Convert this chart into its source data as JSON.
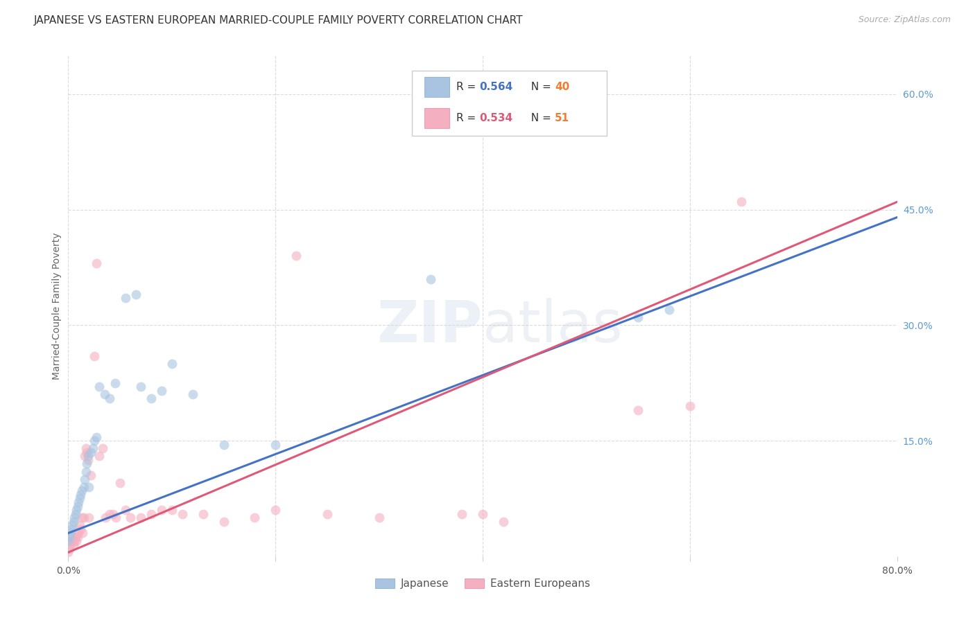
{
  "title": "JAPANESE VS EASTERN EUROPEAN MARRIED-COUPLE FAMILY POVERTY CORRELATION CHART",
  "source": "Source: ZipAtlas.com",
  "ylabel": "Married-Couple Family Poverty",
  "xlim": [
    0.0,
    0.8
  ],
  "ylim": [
    0.0,
    0.65
  ],
  "x_tick_positions": [
    0.0,
    0.2,
    0.4,
    0.6,
    0.8
  ],
  "x_tick_labels": [
    "0.0%",
    "",
    "",
    "",
    "80.0%"
  ],
  "y_tick_positions": [
    0.0,
    0.15,
    0.3,
    0.45,
    0.6
  ],
  "y_tick_labels_right": [
    "",
    "15.0%",
    "30.0%",
    "45.0%",
    "60.0%"
  ],
  "watermark_text": "ZIPatlas",
  "japanese_color": "#a8c4e0",
  "eastern_color": "#f4b0c0",
  "japanese_line_color": "#4472c4",
  "eastern_line_color": "#e05878",
  "background_color": "#ffffff",
  "grid_color": "#d8d8d8",
  "right_tick_color": "#5b9bd5",
  "marker_size": 100,
  "marker_alpha": 0.6,
  "line_width": 2.2,
  "japanese_R": "0.564",
  "japanese_N": "40",
  "eastern_R": "0.534",
  "eastern_N": "51",
  "R_color": "#333333",
  "R_value_color_japanese": "#4472c4",
  "R_value_color_eastern": "#e05878",
  "N_label_color": "#333333",
  "N_value_color": "#ed7d31",
  "japanese_x": [
    0.0,
    0.001,
    0.002,
    0.003,
    0.004,
    0.005,
    0.006,
    0.007,
    0.008,
    0.009,
    0.01,
    0.011,
    0.012,
    0.013,
    0.015,
    0.016,
    0.017,
    0.018,
    0.019,
    0.02,
    0.022,
    0.024,
    0.025,
    0.027,
    0.03,
    0.035,
    0.04,
    0.045,
    0.055,
    0.065,
    0.07,
    0.08,
    0.09,
    0.1,
    0.12,
    0.15,
    0.2,
    0.35,
    0.55,
    0.58
  ],
  "japanese_y": [
    0.02,
    0.025,
    0.03,
    0.035,
    0.04,
    0.045,
    0.05,
    0.055,
    0.06,
    0.065,
    0.07,
    0.075,
    0.08,
    0.085,
    0.09,
    0.1,
    0.11,
    0.12,
    0.13,
    0.09,
    0.135,
    0.14,
    0.15,
    0.155,
    0.22,
    0.21,
    0.205,
    0.225,
    0.335,
    0.34,
    0.22,
    0.205,
    0.215,
    0.25,
    0.21,
    0.145,
    0.145,
    0.36,
    0.31,
    0.32
  ],
  "eastern_x": [
    0.0,
    0.001,
    0.002,
    0.003,
    0.004,
    0.005,
    0.006,
    0.007,
    0.008,
    0.009,
    0.01,
    0.011,
    0.012,
    0.013,
    0.014,
    0.015,
    0.016,
    0.017,
    0.018,
    0.019,
    0.02,
    0.022,
    0.025,
    0.027,
    0.03,
    0.033,
    0.036,
    0.04,
    0.043,
    0.046,
    0.05,
    0.055,
    0.06,
    0.07,
    0.08,
    0.09,
    0.1,
    0.11,
    0.13,
    0.15,
    0.18,
    0.2,
    0.22,
    0.25,
    0.3,
    0.38,
    0.4,
    0.42,
    0.55,
    0.6,
    0.65
  ],
  "eastern_y": [
    0.005,
    0.01,
    0.015,
    0.02,
    0.025,
    0.015,
    0.02,
    0.025,
    0.02,
    0.025,
    0.03,
    0.04,
    0.035,
    0.05,
    0.03,
    0.05,
    0.13,
    0.14,
    0.135,
    0.125,
    0.05,
    0.105,
    0.26,
    0.38,
    0.13,
    0.14,
    0.05,
    0.055,
    0.055,
    0.05,
    0.095,
    0.06,
    0.05,
    0.05,
    0.055,
    0.06,
    0.06,
    0.055,
    0.055,
    0.045,
    0.05,
    0.06,
    0.39,
    0.055,
    0.05,
    0.055,
    0.055,
    0.045,
    0.19,
    0.195,
    0.46
  ]
}
